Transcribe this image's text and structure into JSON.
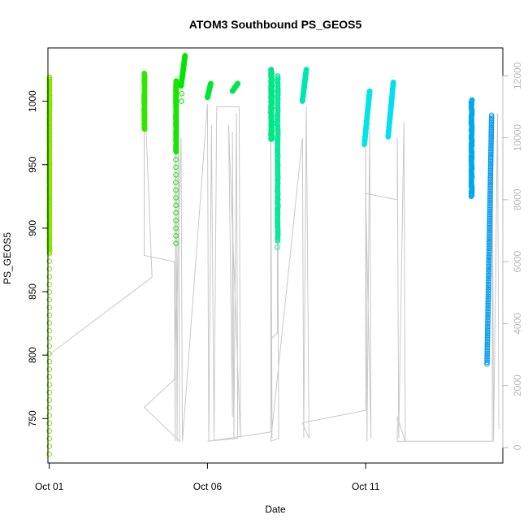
{
  "chart_data": {
    "type": "scatter",
    "title": "ATOM3 Southbound PS_GEOS5",
    "xlabel": "Date",
    "ylabel": "PS_GEOS5",
    "x_axis": {
      "unit": "day",
      "range": [
        "2017-09-30T23:00",
        "2017-10-15T08:00"
      ],
      "ticks": [
        {
          "value": "2017-10-01",
          "label": "Oct 01"
        },
        {
          "value": "2017-10-06",
          "label": "Oct 06"
        },
        {
          "value": "2017-10-11",
          "label": "Oct 11"
        }
      ]
    },
    "y_axis_left": {
      "range": [
        715,
        1042
      ],
      "ticks": [
        750,
        800,
        850,
        900,
        950,
        1000
      ]
    },
    "y_axis_right": {
      "color": "#b8b8b8",
      "range": [
        -500,
        12900
      ],
      "ticks": [
        0,
        2000,
        4000,
        6000,
        8000,
        10000,
        12000
      ]
    },
    "grid": false,
    "legend": "none",
    "point_series": [
      {
        "date": "2017-10-01T00:00",
        "hours": 0.3,
        "min": 722,
        "max": 1019,
        "dense_min": 880,
        "color": "#7fe600"
      },
      {
        "date": "2017-10-04T00:00",
        "hours": 0.4,
        "min": 978,
        "max": 1022,
        "dense_min": 978,
        "color": "#33e600"
      },
      {
        "date": "2017-10-05T00:00",
        "hours": 0.3,
        "min": 888,
        "max": 1016,
        "dense_min": 960,
        "color": "#1ae600"
      },
      {
        "date": "2017-10-05T04:00",
        "hours": 3.0,
        "min": 1000,
        "max": 1036,
        "dense_min": 1012,
        "color": "#00e600"
      },
      {
        "date": "2017-10-06T00:00",
        "hours": 2.5,
        "min": 1003,
        "max": 1014,
        "dense_min": 1003,
        "color": "#00e633"
      },
      {
        "date": "2017-10-06T19:00",
        "hours": 4.0,
        "min": 1008,
        "max": 1014,
        "dense_min": 1008,
        "color": "#00e64d"
      },
      {
        "date": "2017-10-08T00:00",
        "hours": 1.0,
        "min": 970,
        "max": 1025,
        "dense_min": 970,
        "color": "#00e680"
      },
      {
        "date": "2017-10-08T05:00",
        "hours": 0.5,
        "min": 885,
        "max": 1020,
        "dense_min": 890,
        "color": "#00e699"
      },
      {
        "date": "2017-10-09T00:00",
        "hours": 3.0,
        "min": 1000,
        "max": 1025,
        "dense_min": 1000,
        "color": "#00e6b3"
      },
      {
        "date": "2017-10-10T23:00",
        "hours": 4.0,
        "min": 966,
        "max": 1008,
        "dense_min": 966,
        "color": "#00e6e6"
      },
      {
        "date": "2017-10-11T17:00",
        "hours": 4.0,
        "min": 972,
        "max": 1015,
        "dense_min": 972,
        "color": "#00e0f0"
      },
      {
        "date": "2017-10-14T08:00",
        "hours": 0.7,
        "min": 925,
        "max": 1001,
        "dense_min": 925,
        "color": "#00a8f0"
      },
      {
        "date": "2017-10-14T20:00",
        "hours": 3.5,
        "min": 793,
        "max": 989,
        "dense_min": 793,
        "color": "#0099f0"
      }
    ],
    "secondary_series": {
      "axis": "right",
      "color": "#c8c8c8",
      "points": [
        [
          "2017-10-01T00:00",
          3000
        ],
        [
          "2017-10-04T06:00",
          5500
        ],
        [
          "2017-10-04T00:00",
          11800
        ],
        [
          "2017-10-04T00:00",
          6200
        ],
        [
          "2017-10-04T23:00",
          6000
        ],
        [
          "2017-10-04T23:30",
          200
        ],
        [
          "2017-10-05T00:00",
          11700
        ],
        [
          "2017-10-05T01:00",
          200
        ],
        [
          "2017-10-05T02:00",
          10500
        ],
        [
          "2017-10-05T03:00",
          200
        ],
        [
          "2017-10-04T00:00",
          1300
        ],
        [
          "2017-10-04T23:00",
          2200
        ],
        [
          "2017-10-05T04:00",
          10000
        ],
        [
          "2017-10-05T05:00",
          200
        ],
        [
          "2017-10-06T00:00",
          11100
        ],
        [
          "2017-10-06T01:00",
          200
        ],
        [
          "2017-10-06T03:00",
          10400
        ],
        [
          "2017-10-06T05:00",
          200
        ],
        [
          "2017-10-06T07:00",
          11000
        ],
        [
          "2017-10-07T00:00",
          11000
        ],
        [
          "2017-10-07T01:00",
          300
        ],
        [
          "2017-10-06T16:00",
          10400
        ],
        [
          "2017-10-06T19:00",
          1000
        ],
        [
          "2017-10-06T19:00",
          10200
        ],
        [
          "2017-10-06T20:00",
          300
        ],
        [
          "2017-10-06T22:00",
          10800
        ],
        [
          "2017-10-06T23:00",
          300
        ],
        [
          "2017-10-06T00:00",
          200
        ],
        [
          "2017-10-08T00:00",
          500
        ],
        [
          "2017-10-08T00:00",
          11300
        ],
        [
          "2017-10-08T01:00",
          300
        ],
        [
          "2017-10-08T00:00",
          3500
        ],
        [
          "2017-10-08T05:00",
          3700
        ],
        [
          "2017-10-08T05:00",
          11000
        ],
        [
          "2017-10-08T06:00",
          300
        ],
        [
          "2017-10-08T00:00",
          200
        ],
        [
          "2017-10-09T00:00",
          10000
        ],
        [
          "2017-10-09T01:00",
          300
        ],
        [
          "2017-10-09T03:00",
          11000
        ],
        [
          "2017-10-09T05:00",
          300
        ],
        [
          "2017-10-09T00:00",
          800
        ],
        [
          "2017-10-11T00:00",
          1200
        ],
        [
          "2017-10-11T00:00",
          9800
        ],
        [
          "2017-10-11T01:00",
          200
        ],
        [
          "2017-10-11T03:00",
          10500
        ],
        [
          "2017-10-11T04:00",
          300
        ],
        [
          "2017-10-11T00:00",
          8200
        ],
        [
          "2017-10-12T00:00",
          8000
        ],
        [
          "2017-10-12T00:00",
          10000
        ],
        [
          "2017-10-12T01:00",
          300
        ],
        [
          "2017-10-12T05:00",
          10500
        ],
        [
          "2017-10-12T06:00",
          200
        ],
        [
          "2017-10-12T00:00",
          1000
        ],
        [
          "2017-10-12T00:00",
          200
        ],
        [
          "2017-10-15T00:00",
          200
        ],
        [
          "2017-10-15T00:00",
          10500
        ],
        [
          "2017-10-15T01:00",
          200
        ],
        [
          "2017-10-15T04:00",
          10800
        ],
        [
          "2017-10-15T05:00",
          600
        ]
      ]
    }
  }
}
